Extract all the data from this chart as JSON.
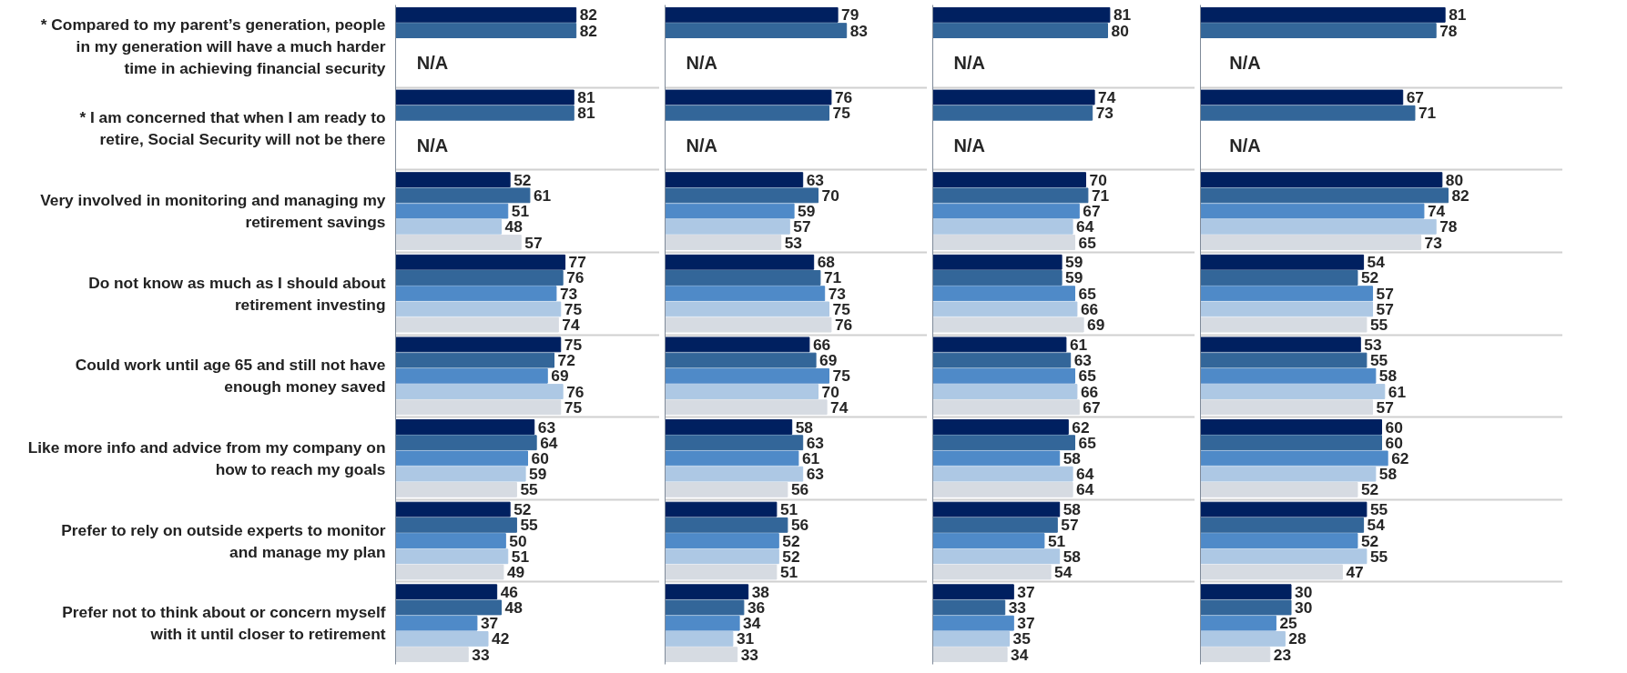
{
  "chart_data": [
    {
      "type": "bar",
      "orientation": "horizontal",
      "data_labels": true,
      "grid": "y",
      "tick_labels": "y",
      "xlim": [
        0,
        120
      ],
      "categories": [
        "* Compared to my parent’s generation, people in my generation will have a much harder time in achieving financial security",
        "* I am concerned that when I am ready to retire, Social Security will not be there",
        "Very involved in monitoring and managing my retirement savings",
        "Do not know as much as I should about retirement investing",
        "Could work until age 65 and still not have enough money saved",
        "Like more info and advice from my company on how to reach my goals",
        "Prefer to rely on outside experts to monitor and manage my plan",
        "Prefer not to think about or concern myself with it until closer to retirement"
      ],
      "annotations": [
        "N/A",
        "N/A"
      ],
      "series": [
        {
          "color": "#002060",
          "values": [
            82,
            81,
            52,
            77,
            75,
            63,
            52,
            46
          ]
        },
        {
          "color": "#336699",
          "values": [
            82,
            81,
            61,
            76,
            72,
            64,
            55,
            48
          ]
        },
        {
          "color": "#4f8ac8",
          "values": [
            null,
            null,
            51,
            73,
            69,
            60,
            50,
            37
          ]
        },
        {
          "color": "#adc8e4",
          "values": [
            null,
            null,
            48,
            75,
            76,
            59,
            51,
            42
          ]
        },
        {
          "color": "#d6dbe2",
          "values": [
            null,
            null,
            57,
            74,
            75,
            55,
            49,
            33
          ]
        }
      ]
    },
    {
      "type": "bar",
      "orientation": "horizontal",
      "data_labels": true,
      "grid": "y",
      "tick_labels": false,
      "xlim": [
        0,
        120
      ],
      "categories": [
        "* Compared to my parent’s generation, people in my generation will have a much harder time in achieving financial security",
        "* I am concerned that when I am ready to retire, Social Security will not be there",
        "Very involved in monitoring and managing my retirement savings",
        "Do not know as much as I should about retirement investing",
        "Could work until age 65 and still not have enough money saved",
        "Like more info and advice from my company on how to reach my goals",
        "Prefer to rely on outside experts to monitor and manage my plan",
        "Prefer not to think about or concern myself with it until closer to retirement"
      ],
      "annotations": [
        "N/A",
        "N/A"
      ],
      "series": [
        {
          "color": "#002060",
          "values": [
            79,
            76,
            63,
            68,
            66,
            58,
            51,
            38
          ]
        },
        {
          "color": "#336699",
          "values": [
            83,
            75,
            70,
            71,
            69,
            63,
            56,
            36
          ]
        },
        {
          "color": "#4f8ac8",
          "values": [
            null,
            null,
            59,
            73,
            75,
            61,
            52,
            34
          ]
        },
        {
          "color": "#adc8e4",
          "values": [
            null,
            null,
            57,
            75,
            70,
            63,
            52,
            31
          ]
        },
        {
          "color": "#d6dbe2",
          "values": [
            null,
            null,
            53,
            76,
            74,
            56,
            51,
            33
          ]
        }
      ]
    },
    {
      "type": "bar",
      "orientation": "horizontal",
      "data_labels": true,
      "grid": "y",
      "tick_labels": false,
      "xlim": [
        0,
        120
      ],
      "categories": [
        "* Compared to my parent’s generation, people in my generation will have a much harder time in achieving financial security",
        "* I am concerned that when I am ready to retire, Social Security will not be there",
        "Very involved in monitoring and managing my retirement savings",
        "Do not know as much as I should about retirement investing",
        "Could work until age 65 and still not have enough money saved",
        "Like more info and advice from my company on how to reach my goals",
        "Prefer to rely on outside experts to monitor and manage my plan",
        "Prefer not to think about or concern myself with it until closer to retirement"
      ],
      "annotations": [
        "N/A",
        "N/A"
      ],
      "series": [
        {
          "color": "#002060",
          "values": [
            81,
            74,
            70,
            59,
            61,
            62,
            58,
            37
          ]
        },
        {
          "color": "#336699",
          "values": [
            80,
            73,
            71,
            59,
            63,
            65,
            57,
            33
          ]
        },
        {
          "color": "#4f8ac8",
          "values": [
            null,
            null,
            67,
            65,
            65,
            58,
            51,
            37
          ]
        },
        {
          "color": "#adc8e4",
          "values": [
            null,
            null,
            64,
            66,
            66,
            64,
            58,
            35
          ]
        },
        {
          "color": "#d6dbe2",
          "values": [
            null,
            null,
            65,
            69,
            67,
            64,
            54,
            34
          ]
        }
      ]
    },
    {
      "type": "bar",
      "orientation": "horizontal",
      "data_labels": true,
      "grid": "y",
      "tick_labels": false,
      "xlim": [
        0,
        120
      ],
      "categories": [
        "* Compared to my parent’s generation, people in my generation will have a much harder time in achieving financial security",
        "* I am concerned that when I am ready to retire, Social Security will not be there",
        "Very involved in monitoring and managing my retirement savings",
        "Do not know as much as I should about retirement investing",
        "Could work until age 65 and still not have enough money saved",
        "Like more info and advice from my company on how to reach my goals",
        "Prefer to rely on outside experts to monitor and manage my plan",
        "Prefer not to think about or concern myself with it until closer to retirement"
      ],
      "annotations": [
        "N/A",
        "N/A"
      ],
      "series": [
        {
          "color": "#002060",
          "values": [
            81,
            67,
            80,
            54,
            53,
            60,
            55,
            30
          ]
        },
        {
          "color": "#336699",
          "values": [
            78,
            71,
            82,
            52,
            55,
            60,
            54,
            30
          ]
        },
        {
          "color": "#4f8ac8",
          "values": [
            null,
            null,
            74,
            57,
            58,
            62,
            52,
            25
          ]
        },
        {
          "color": "#adc8e4",
          "values": [
            null,
            null,
            78,
            57,
            61,
            58,
            55,
            28
          ]
        },
        {
          "color": "#d6dbe2",
          "values": [
            null,
            null,
            73,
            55,
            57,
            52,
            47,
            23
          ]
        }
      ]
    }
  ]
}
